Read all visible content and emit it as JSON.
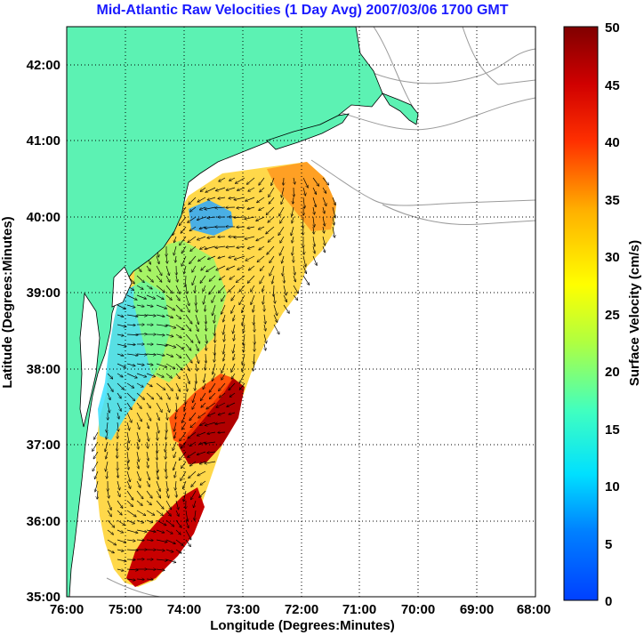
{
  "title": "Mid-Atlantic Raw Velocities (1 Day Avg) 2007/03/06 1700 GMT",
  "x_axis": {
    "label": "Longitude (Degrees:Minutes)",
    "ticks": [
      "76:00",
      "75:00",
      "74:00",
      "73:00",
      "72:00",
      "71:00",
      "70:00",
      "69:00",
      "68:00"
    ],
    "range": [
      -76,
      -68
    ]
  },
  "y_axis": {
    "label": "Latitude (Degrees:Minutes)",
    "ticks": [
      "35:00",
      "36:00",
      "37:00",
      "38:00",
      "39:00",
      "40:00",
      "41:00",
      "42:00"
    ],
    "range": [
      35,
      42.5
    ]
  },
  "colorbar": {
    "label": "Surface Velocity (cm/s)",
    "min": 0,
    "max": 50,
    "ticks": [
      "0",
      "5",
      "10",
      "15",
      "20",
      "25",
      "30",
      "35",
      "40",
      "45",
      "50"
    ]
  },
  "colors": {
    "land": "#5cf2b3",
    "title": "#1a1aff",
    "bathymetry": "#9a9a9a"
  },
  "grid": true
}
